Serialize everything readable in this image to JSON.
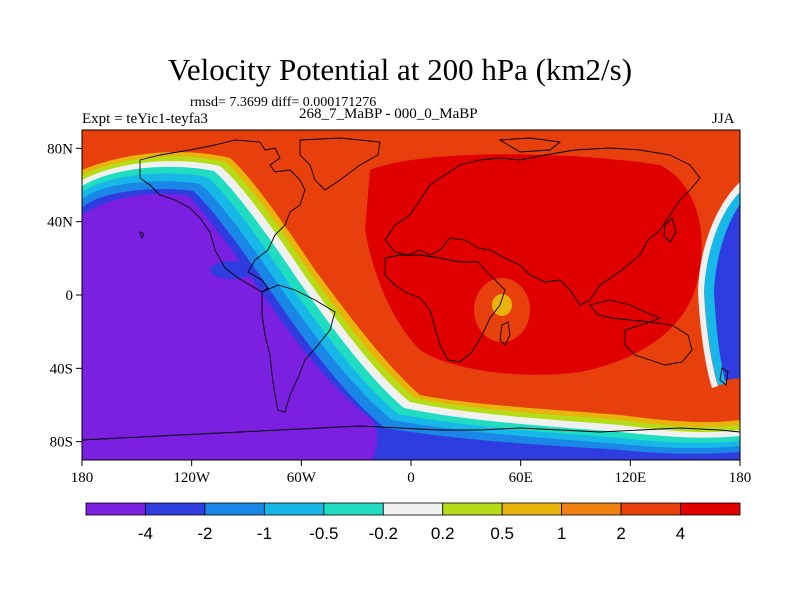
{
  "title": "Velocity Potential at 200 hPa (km2/s)",
  "stats": "rmsd= 7.3699 diff= 0.000171276",
  "left_label": "Expt = teYic1-teyfa3",
  "center_label": "268_7_MaBP - 000_0_MaBP",
  "right_label": "JJA",
  "map": {
    "lon_labels": [
      "180",
      "120W",
      "60W",
      "0",
      "60E",
      "120E",
      "180"
    ],
    "lat_labels": [
      "80N",
      "40N",
      "0",
      "40S",
      "80S"
    ]
  },
  "colorbar": {
    "levels": [
      "-4",
      "-2",
      "-1",
      "-0.5",
      "-0.2",
      "0.2",
      "0.5",
      "1",
      "2",
      "4"
    ],
    "colors": [
      "#7b1fe0",
      "#2f3ce0",
      "#1a86e6",
      "#17b8e8",
      "#20dcc0",
      "#f0f0f0",
      "#b6dc18",
      "#e8b40c",
      "#f08010",
      "#e8400c",
      "#e00000"
    ]
  },
  "colors": {
    "negative_strong": "#7b1fe0",
    "positive_strong": "#e00000"
  }
}
